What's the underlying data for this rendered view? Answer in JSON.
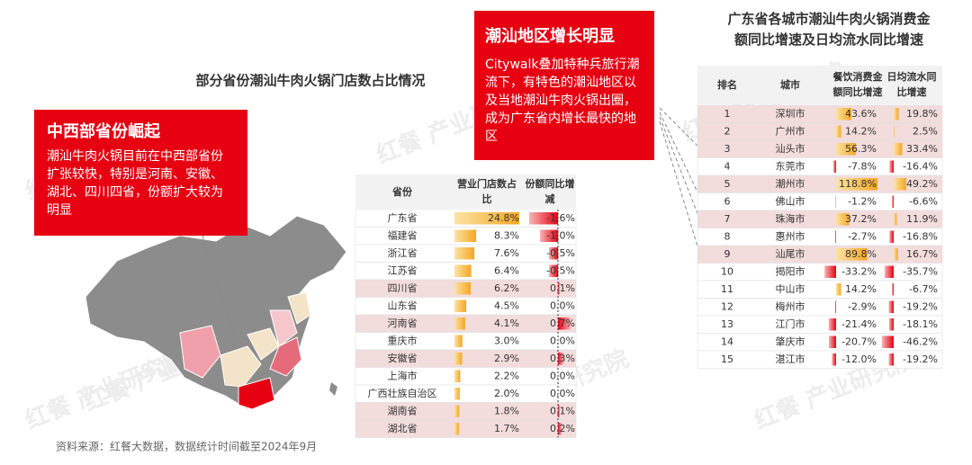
{
  "left_title": "部分省份潮汕牛肉火锅门店数占比情况",
  "callout_west": {
    "title": "中西部省份崛起",
    "body": "潮汕牛肉火锅目前在中西部省份扩张较快，特别是河南、安徽、湖北、四川四省，份额扩大较为明显"
  },
  "callout_chaoshan": {
    "title": "潮汕地区增长明显",
    "body": "Citywalk叠加特种兵旅行潮流下，有特色的潮汕地区以及当地潮汕牛肉火锅出圈，成为广东省内增长最快的地区"
  },
  "province_table": {
    "headers": [
      "省份",
      "营业门店数占比",
      "份额同比增减"
    ],
    "rows": [
      {
        "province": "广东省",
        "share": 24.8,
        "share_label": "24.8%",
        "change": -1.6,
        "change_label": "-1.6%",
        "highlight": false
      },
      {
        "province": "福建省",
        "share": 8.3,
        "share_label": "8.3%",
        "change": -1.0,
        "change_label": "-1.0%",
        "highlight": false
      },
      {
        "province": "浙江省",
        "share": 7.6,
        "share_label": "7.6%",
        "change": -0.5,
        "change_label": "-0.5%",
        "highlight": false
      },
      {
        "province": "江苏省",
        "share": 6.4,
        "share_label": "6.4%",
        "change": -0.5,
        "change_label": "-0.5%",
        "highlight": false
      },
      {
        "province": "四川省",
        "share": 6.2,
        "share_label": "6.2%",
        "change": 0.1,
        "change_label": "0.1%",
        "highlight": true
      },
      {
        "province": "山东省",
        "share": 4.5,
        "share_label": "4.5%",
        "change": 0.0,
        "change_label": "0.0%",
        "highlight": false
      },
      {
        "province": "河南省",
        "share": 4.1,
        "share_label": "4.1%",
        "change": 0.7,
        "change_label": "0.7%",
        "highlight": true
      },
      {
        "province": "重庆市",
        "share": 3.0,
        "share_label": "3.0%",
        "change": 0.0,
        "change_label": "0.0%",
        "highlight": false
      },
      {
        "province": "安徽省",
        "share": 2.9,
        "share_label": "2.9%",
        "change": 0.3,
        "change_label": "0.3%",
        "highlight": true
      },
      {
        "province": "上海市",
        "share": 2.2,
        "share_label": "2.2%",
        "change": 0.0,
        "change_label": "0.0%",
        "highlight": false
      },
      {
        "province": "广西壮族自治区",
        "share": 2.0,
        "share_label": "2.0%",
        "change": 0.0,
        "change_label": "0.0%",
        "highlight": false
      },
      {
        "province": "湖南省",
        "share": 1.8,
        "share_label": "1.8%",
        "change": 0.1,
        "change_label": "0.1%",
        "highlight": true
      },
      {
        "province": "湖北省",
        "share": 1.7,
        "share_label": "1.7%",
        "change": 0.2,
        "change_label": "0.2%",
        "highlight": true
      }
    ]
  },
  "right_title": "广东省各城市潮汕牛肉火锅消费金额同比增速及日均流水同比增速",
  "city_table": {
    "headers": [
      "排名",
      "城市",
      "餐饮消费金额同比增速",
      "日均流水同比增速"
    ],
    "rows": [
      {
        "rank": 1,
        "city": "深圳市",
        "consumption": 43.6,
        "consumption_label": "43.6%",
        "daily_flow": 19.8,
        "daily_flow_label": "19.8%",
        "highlight": true
      },
      {
        "rank": 2,
        "city": "广州市",
        "consumption": 14.2,
        "consumption_label": "14.2%",
        "daily_flow": 2.5,
        "daily_flow_label": "2.5%",
        "highlight": true
      },
      {
        "rank": 3,
        "city": "汕头市",
        "consumption": 56.3,
        "consumption_label": "56.3%",
        "daily_flow": 33.4,
        "daily_flow_label": "33.4%",
        "highlight": true
      },
      {
        "rank": 4,
        "city": "东莞市",
        "consumption": -7.8,
        "consumption_label": "-7.8%",
        "daily_flow": -16.4,
        "daily_flow_label": "-16.4%",
        "highlight": false
      },
      {
        "rank": 5,
        "city": "潮州市",
        "consumption": 118.8,
        "consumption_label": "118.8%",
        "daily_flow": 49.2,
        "daily_flow_label": "49.2%",
        "highlight": true
      },
      {
        "rank": 6,
        "city": "佛山市",
        "consumption": -1.2,
        "consumption_label": "-1.2%",
        "daily_flow": -6.6,
        "daily_flow_label": "-6.6%",
        "highlight": false
      },
      {
        "rank": 7,
        "city": "珠海市",
        "consumption": 37.2,
        "consumption_label": "37.2%",
        "daily_flow": 11.9,
        "daily_flow_label": "11.9%",
        "highlight": true
      },
      {
        "rank": 8,
        "city": "惠州市",
        "consumption": -2.7,
        "consumption_label": "-2.7%",
        "daily_flow": -16.8,
        "daily_flow_label": "-16.8%",
        "highlight": false
      },
      {
        "rank": 9,
        "city": "汕尾市",
        "consumption": 89.8,
        "consumption_label": "89.8%",
        "daily_flow": 16.7,
        "daily_flow_label": "16.7%",
        "highlight": true
      },
      {
        "rank": 10,
        "city": "揭阳市",
        "consumption": -33.2,
        "consumption_label": "-33.2%",
        "daily_flow": -35.7,
        "daily_flow_label": "-35.7%",
        "highlight": false
      },
      {
        "rank": 11,
        "city": "中山市",
        "consumption": 14.2,
        "consumption_label": "14.2%",
        "daily_flow": -6.7,
        "daily_flow_label": "-6.7%",
        "highlight": false
      },
      {
        "rank": 12,
        "city": "梅州市",
        "consumption": -2.9,
        "consumption_label": "-2.9%",
        "daily_flow": -19.2,
        "daily_flow_label": "-19.2%",
        "highlight": false
      },
      {
        "rank": 13,
        "city": "江门市",
        "consumption": -21.4,
        "consumption_label": "-21.4%",
        "daily_flow": -18.1,
        "daily_flow_label": "-18.1%",
        "highlight": false
      },
      {
        "rank": 14,
        "city": "肇庆市",
        "consumption": -20.7,
        "consumption_label": "-20.7%",
        "daily_flow": -46.2,
        "daily_flow_label": "-46.2%",
        "highlight": false
      },
      {
        "rank": 15,
        "city": "湛江市",
        "consumption": -12.0,
        "consumption_label": "-12.0%",
        "daily_flow": -19.2,
        "daily_flow_label": "-19.2%",
        "highlight": false
      }
    ]
  },
  "source": "资料来源：红餐大数据，数据统计时间截至2024年9月",
  "watermark": "红餐 产业研究院"
}
